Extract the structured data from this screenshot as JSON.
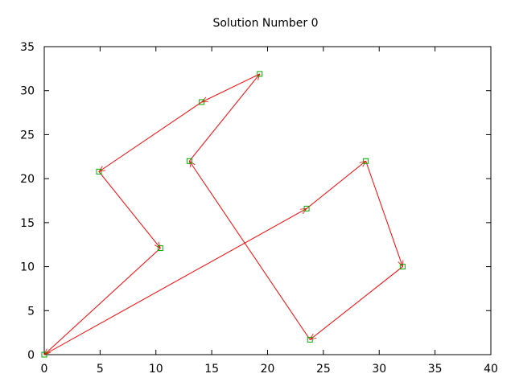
{
  "chart_data": {
    "type": "line",
    "title": "Solution Number 0",
    "xlabel": "",
    "ylabel": "",
    "xlim": [
      0,
      40
    ],
    "ylim": [
      0,
      35
    ],
    "xticks": [
      0,
      5,
      10,
      15,
      20,
      25,
      30,
      35,
      40
    ],
    "yticks": [
      0,
      5,
      10,
      15,
      20,
      25,
      30,
      35
    ],
    "xtick_labels": [
      "0",
      "5",
      "10",
      "15",
      "20",
      "25",
      "30",
      "35",
      "40"
    ],
    "ytick_labels": [
      "0",
      "5",
      "10",
      "15",
      "20",
      "25",
      "30",
      "35"
    ],
    "grid": false,
    "style": "directed path with arrowheads; square markers at nodes",
    "colors": {
      "line": "#ff0000",
      "marker": "#00aa00",
      "frame": "#000000"
    },
    "series": [
      {
        "points": [
          {
            "x": 23.5,
            "y": 16.6
          },
          {
            "x": 28.8,
            "y": 22.0
          },
          {
            "x": 32.1,
            "y": 10.0
          },
          {
            "x": 23.8,
            "y": 1.7
          },
          {
            "x": 13.0,
            "y": 22.0
          },
          {
            "x": 19.3,
            "y": 31.9
          },
          {
            "x": 14.1,
            "y": 28.7
          },
          {
            "x": 4.9,
            "y": 20.8
          },
          {
            "x": 10.4,
            "y": 12.1
          },
          {
            "x": 0.0,
            "y": 0.0
          },
          {
            "x": 23.5,
            "y": 16.6
          }
        ]
      }
    ]
  }
}
